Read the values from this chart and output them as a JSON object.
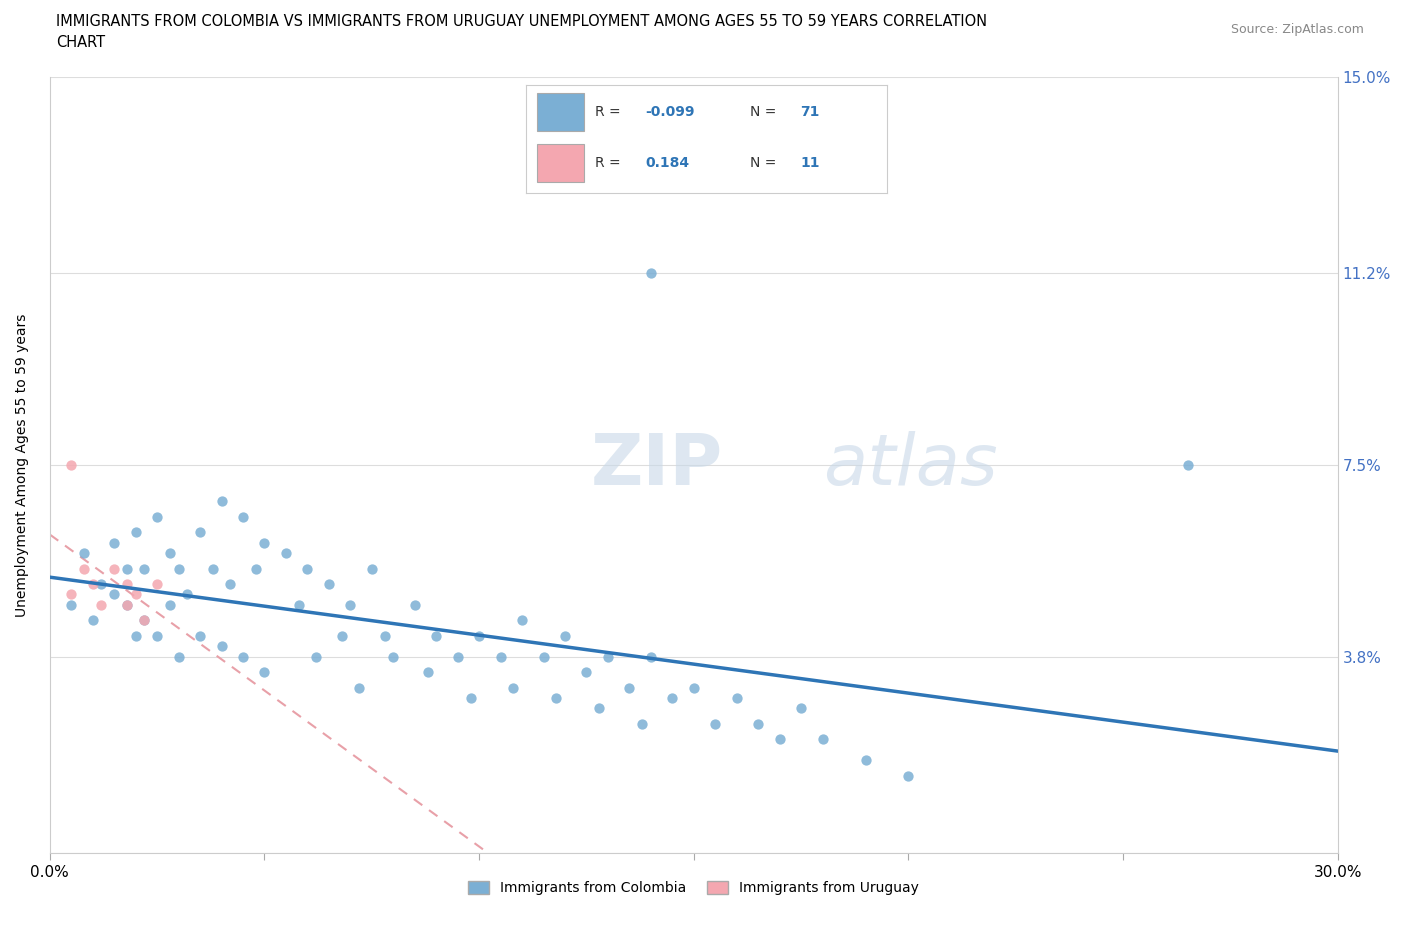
{
  "title_line1": "IMMIGRANTS FROM COLOMBIA VS IMMIGRANTS FROM URUGUAY UNEMPLOYMENT AMONG AGES 55 TO 59 YEARS CORRELATION",
  "title_line2": "CHART",
  "source_text": "Source: ZipAtlas.com",
  "ylabel": "Unemployment Among Ages 55 to 59 years",
  "xlim": [
    0.0,
    0.3
  ],
  "ylim": [
    0.0,
    0.15
  ],
  "xtick_positions": [
    0.0,
    0.05,
    0.1,
    0.15,
    0.2,
    0.25,
    0.3
  ],
  "xtick_labels": [
    "0.0%",
    "",
    "",
    "",
    "",
    "",
    "30.0%"
  ],
  "ytick_positions": [
    0.0,
    0.038,
    0.075,
    0.112,
    0.15
  ],
  "ytick_labels": [
    "",
    "3.8%",
    "7.5%",
    "11.2%",
    "15.0%"
  ],
  "colombia_color": "#7BAFD4",
  "uruguay_color": "#F4A7B0",
  "trendline_colombia_color": "#2E75B6",
  "trendline_uruguay_color": "#F4A7B0",
  "R_colombia": -0.099,
  "N_colombia": 71,
  "R_uruguay": 0.184,
  "N_uruguay": 11,
  "colombia_x": [
    0.005,
    0.008,
    0.01,
    0.012,
    0.015,
    0.015,
    0.018,
    0.018,
    0.02,
    0.02,
    0.022,
    0.022,
    0.025,
    0.025,
    0.028,
    0.028,
    0.03,
    0.03,
    0.032,
    0.035,
    0.035,
    0.038,
    0.04,
    0.04,
    0.042,
    0.045,
    0.045,
    0.048,
    0.05,
    0.05,
    0.055,
    0.058,
    0.06,
    0.062,
    0.065,
    0.068,
    0.07,
    0.072,
    0.075,
    0.078,
    0.08,
    0.085,
    0.088,
    0.09,
    0.095,
    0.098,
    0.1,
    0.105,
    0.108,
    0.11,
    0.115,
    0.118,
    0.12,
    0.125,
    0.128,
    0.13,
    0.135,
    0.138,
    0.14,
    0.145,
    0.15,
    0.155,
    0.16,
    0.165,
    0.17,
    0.175,
    0.18,
    0.19,
    0.2,
    0.265,
    0.14
  ],
  "colombia_y": [
    0.048,
    0.058,
    0.045,
    0.052,
    0.06,
    0.05,
    0.055,
    0.048,
    0.062,
    0.042,
    0.055,
    0.045,
    0.065,
    0.042,
    0.058,
    0.048,
    0.055,
    0.038,
    0.05,
    0.062,
    0.042,
    0.055,
    0.068,
    0.04,
    0.052,
    0.065,
    0.038,
    0.055,
    0.06,
    0.035,
    0.058,
    0.048,
    0.055,
    0.038,
    0.052,
    0.042,
    0.048,
    0.032,
    0.055,
    0.042,
    0.038,
    0.048,
    0.035,
    0.042,
    0.038,
    0.03,
    0.042,
    0.038,
    0.032,
    0.045,
    0.038,
    0.03,
    0.042,
    0.035,
    0.028,
    0.038,
    0.032,
    0.025,
    0.038,
    0.03,
    0.032,
    0.025,
    0.03,
    0.025,
    0.022,
    0.028,
    0.022,
    0.018,
    0.015,
    0.075,
    0.112
  ],
  "uruguay_x": [
    0.005,
    0.008,
    0.01,
    0.012,
    0.015,
    0.018,
    0.018,
    0.02,
    0.022,
    0.025,
    0.005
  ],
  "uruguay_y": [
    0.05,
    0.055,
    0.052,
    0.048,
    0.055,
    0.052,
    0.048,
    0.05,
    0.045,
    0.052,
    0.075
  ],
  "watermark_zip": "ZIP",
  "watermark_atlas": "atlas",
  "legend_label_colombia": "Immigrants from Colombia",
  "legend_label_uruguay": "Immigrants from Uruguay"
}
